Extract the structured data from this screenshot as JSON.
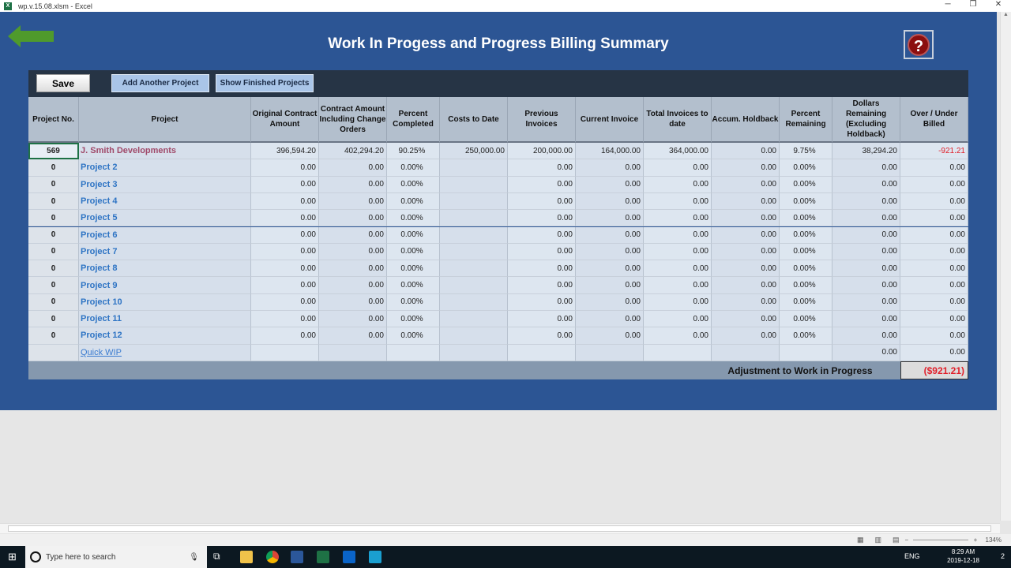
{
  "window": {
    "title": "wp.v.15.08.xlsm - Excel",
    "controls": [
      "─",
      "❐",
      "✕"
    ]
  },
  "page": {
    "title": "Work In Progess and Progress Billing Summary",
    "help": "?"
  },
  "toolbar": {
    "save": "Save",
    "add": "Add Another Project",
    "show": "Show Finished Projects"
  },
  "columns": [
    "Project No.",
    "Project",
    "Original Contract Amount",
    "Contract Amount Including Change Orders",
    "Percent Completed",
    "Costs to Date",
    "Previous Invoices",
    "Current Invoice",
    "Total Invoices to date",
    "Accum. Holdback",
    "Percent Remaining",
    "Dollars Remaining (Excluding Holdback)",
    "Over / Under Billed"
  ],
  "rows": [
    [
      "569",
      "J. Smith Developments",
      "396,594.20",
      "402,294.20",
      "90.25%",
      "250,000.00",
      "200,000.00",
      "164,000.00",
      "364,000.00",
      "0.00",
      "9.75%",
      "38,294.20",
      "-921.21"
    ],
    [
      "0",
      "Project 2",
      "0.00",
      "0.00",
      "0.00%",
      "",
      "0.00",
      "0.00",
      "0.00",
      "0.00",
      "0.00%",
      "0.00",
      "0.00"
    ],
    [
      "0",
      "Project 3",
      "0.00",
      "0.00",
      "0.00%",
      "",
      "0.00",
      "0.00",
      "0.00",
      "0.00",
      "0.00%",
      "0.00",
      "0.00"
    ],
    [
      "0",
      "Project 4",
      "0.00",
      "0.00",
      "0.00%",
      "",
      "0.00",
      "0.00",
      "0.00",
      "0.00",
      "0.00%",
      "0.00",
      "0.00"
    ],
    [
      "0",
      "Project 5",
      "0.00",
      "0.00",
      "0.00%",
      "",
      "0.00",
      "0.00",
      "0.00",
      "0.00",
      "0.00%",
      "0.00",
      "0.00"
    ],
    [
      "0",
      "Project 6",
      "0.00",
      "0.00",
      "0.00%",
      "",
      "0.00",
      "0.00",
      "0.00",
      "0.00",
      "0.00%",
      "0.00",
      "0.00"
    ],
    [
      "0",
      "Project 7",
      "0.00",
      "0.00",
      "0.00%",
      "",
      "0.00",
      "0.00",
      "0.00",
      "0.00",
      "0.00%",
      "0.00",
      "0.00"
    ],
    [
      "0",
      "Project 8",
      "0.00",
      "0.00",
      "0.00%",
      "",
      "0.00",
      "0.00",
      "0.00",
      "0.00",
      "0.00%",
      "0.00",
      "0.00"
    ],
    [
      "0",
      "Project 9",
      "0.00",
      "0.00",
      "0.00%",
      "",
      "0.00",
      "0.00",
      "0.00",
      "0.00",
      "0.00%",
      "0.00",
      "0.00"
    ],
    [
      "0",
      "Project 10",
      "0.00",
      "0.00",
      "0.00%",
      "",
      "0.00",
      "0.00",
      "0.00",
      "0.00",
      "0.00%",
      "0.00",
      "0.00"
    ],
    [
      "0",
      "Project 11",
      "0.00",
      "0.00",
      "0.00%",
      "",
      "0.00",
      "0.00",
      "0.00",
      "0.00",
      "0.00%",
      "0.00",
      "0.00"
    ],
    [
      "0",
      "Project 12",
      "0.00",
      "0.00",
      "0.00%",
      "",
      "0.00",
      "0.00",
      "0.00",
      "0.00",
      "0.00%",
      "0.00",
      "0.00"
    ],
    [
      "",
      "Quick WIP",
      "",
      "",
      "",
      "",
      "",
      "",
      "",
      "",
      "",
      "0.00",
      "0.00"
    ]
  ],
  "footer": {
    "label": "Adjustment to Work in Progress",
    "value": "($921.21)"
  },
  "status": {
    "zoom": "134%",
    "zoom_minus": "−",
    "zoom_plus": "+"
  },
  "taskbar": {
    "search_placeholder": "Type here to search",
    "time": "8:29 AM",
    "date": "2019-12-18",
    "lang": "ENG",
    "notifications": "2"
  },
  "colors": {
    "sheet_bg": "#2c5594",
    "header_bg": "#b3bfcd",
    "negative": "#e0202a",
    "link": "#2e74c4"
  }
}
